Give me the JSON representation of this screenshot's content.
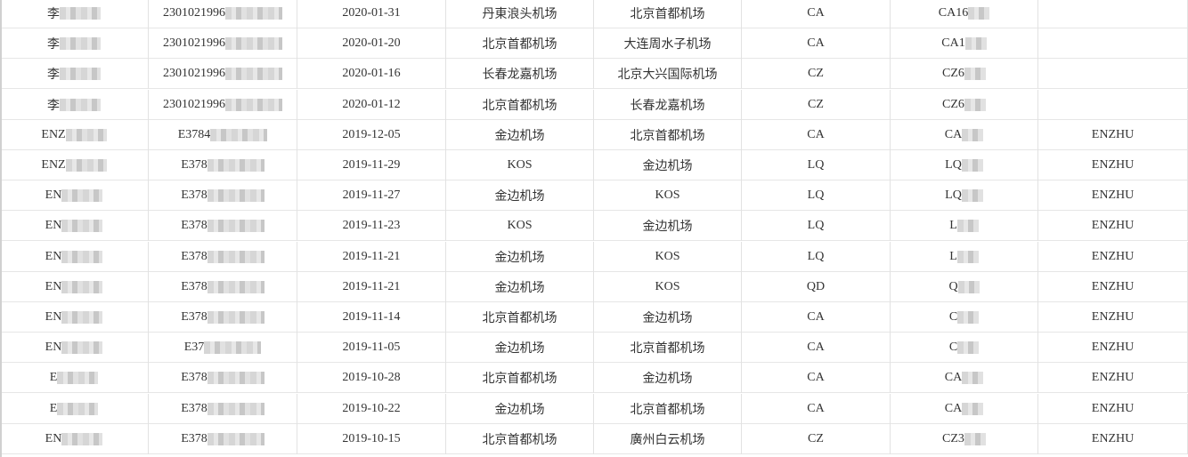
{
  "sheet": {
    "rows": [
      {
        "name": "李",
        "id": "2301021996",
        "date": "2020-01-31",
        "from": "丹東浪头机场",
        "to": "北京首都机场",
        "airline": "CA",
        "flight": "CA16",
        "pax": ""
      },
      {
        "name": "李",
        "id": "2301021996",
        "date": "2020-01-20",
        "from": "北京首都机场",
        "to": "大连周水子机场",
        "airline": "CA",
        "flight": "CA1",
        "pax": ""
      },
      {
        "name": "李",
        "id": "2301021996",
        "date": "2020-01-16",
        "from": "长春龙嘉机场",
        "to": "北京大兴国际机场",
        "airline": "CZ",
        "flight": "CZ6",
        "pax": ""
      },
      {
        "name": "李",
        "id": "2301021996",
        "date": "2020-01-12",
        "from": "北京首都机场",
        "to": "长春龙嘉机场",
        "airline": "CZ",
        "flight": "CZ6",
        "pax": ""
      },
      {
        "name": "ENZ",
        "id": "E3784",
        "date": "2019-12-05",
        "from": "金边机场",
        "to": "北京首都机场",
        "airline": "CA",
        "flight": "CA",
        "pax": "ENZHU"
      },
      {
        "name": "ENZ",
        "id": "E378",
        "date": "2019-11-29",
        "from": "KOS",
        "to": "金边机场",
        "airline": "LQ",
        "flight": "LQ",
        "pax": "ENZHU"
      },
      {
        "name": "EN",
        "id": "E378",
        "date": "2019-11-27",
        "from": "金边机场",
        "to": "KOS",
        "airline": "LQ",
        "flight": "LQ",
        "pax": "ENZHU"
      },
      {
        "name": "EN",
        "id": "E378",
        "date": "2019-11-23",
        "from": "KOS",
        "to": "金边机场",
        "airline": "LQ",
        "flight": "L",
        "pax": "ENZHU"
      },
      {
        "name": "EN",
        "id": "E378",
        "date": "2019-11-21",
        "from": "金边机场",
        "to": "KOS",
        "airline": "LQ",
        "flight": "L",
        "pax": "ENZHU"
      },
      {
        "name": "EN",
        "id": "E378",
        "date": "2019-11-21",
        "from": "金边机场",
        "to": "KOS",
        "airline": "QD",
        "flight": "Q",
        "pax": "ENZHU"
      },
      {
        "name": "EN",
        "id": "E378",
        "date": "2019-11-14",
        "from": "北京首都机场",
        "to": "金边机场",
        "airline": "CA",
        "flight": "C",
        "pax": "ENZHU"
      },
      {
        "name": "EN",
        "id": "E37",
        "date": "2019-11-05",
        "from": "金边机场",
        "to": "北京首都机场",
        "airline": "CA",
        "flight": "C",
        "pax": "ENZHU"
      },
      {
        "name": "E",
        "id": "E378",
        "date": "2019-10-28",
        "from": "北京首都机场",
        "to": "金边机场",
        "airline": "CA",
        "flight": "CA",
        "pax": "ENZHU"
      },
      {
        "name": "E",
        "id": "E378",
        "date": "2019-10-22",
        "from": "金边机场",
        "to": "北京首都机场",
        "airline": "CA",
        "flight": "CA",
        "pax": "ENZHU"
      },
      {
        "name": "EN",
        "id": "E378",
        "date": "2019-10-15",
        "from": "北京首都机场",
        "to": "廣州白云机场",
        "airline": "CZ",
        "flight": "CZ3",
        "pax": "ENZHU"
      }
    ]
  }
}
